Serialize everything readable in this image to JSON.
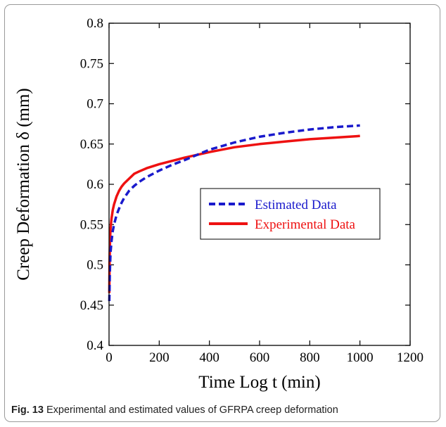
{
  "caption": {
    "label": "Fig. 13",
    "text": "Experimental and estimated values of GFRPA creep deformation"
  },
  "chart_data": {
    "type": "line",
    "xlabel": "Time Log t (min)",
    "ylabel": "Creep Deformation δ (mm)",
    "xlim": [
      0,
      1200
    ],
    "ylim": [
      0.4,
      0.8
    ],
    "xticks": [
      "0",
      "200",
      "400",
      "600",
      "800",
      "1000",
      "1200"
    ],
    "yticks": [
      "0.4",
      "0.45",
      "0.5",
      "0.55",
      "0.6",
      "0.65",
      "0.7",
      "0.75",
      "0.8"
    ],
    "legend_position": "center-right",
    "grid": false,
    "series": [
      {
        "name": "Estimated Data",
        "color": "#1a1acc",
        "style": "dashed",
        "x": [
          1,
          3,
          6,
          10,
          15,
          20,
          30,
          40,
          50,
          60,
          80,
          100,
          120,
          150,
          200,
          250,
          300,
          400,
          500,
          600,
          700,
          800,
          900,
          1000
        ],
        "y": [
          0.455,
          0.49,
          0.515,
          0.53,
          0.542,
          0.55,
          0.562,
          0.57,
          0.577,
          0.583,
          0.592,
          0.598,
          0.603,
          0.609,
          0.617,
          0.624,
          0.63,
          0.643,
          0.652,
          0.659,
          0.664,
          0.668,
          0.671,
          0.673
        ]
      },
      {
        "name": "Experimental Data",
        "color": "#ee1111",
        "style": "solid",
        "x": [
          1,
          2,
          4,
          6,
          10,
          15,
          20,
          30,
          40,
          50,
          60,
          80,
          100,
          120,
          150,
          200,
          250,
          300,
          400,
          500,
          600,
          700,
          800,
          900,
          1000
        ],
        "y": [
          0.465,
          0.5,
          0.53,
          0.545,
          0.558,
          0.568,
          0.575,
          0.585,
          0.592,
          0.597,
          0.601,
          0.607,
          0.613,
          0.616,
          0.62,
          0.625,
          0.629,
          0.633,
          0.64,
          0.646,
          0.65,
          0.653,
          0.656,
          0.658,
          0.66
        ]
      }
    ]
  }
}
